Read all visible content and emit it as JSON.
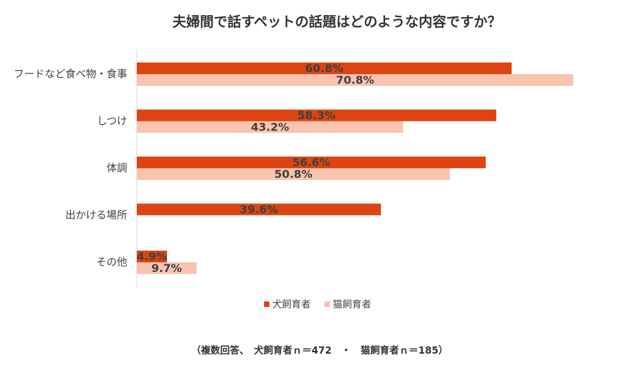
{
  "chart_data": {
    "type": "hbar",
    "title": "夫婦間で話すペットの話題はどのような内容ですか？",
    "categories": [
      "フードなど食べ物・食事",
      "しつけ",
      "体調",
      "出かける場所",
      "その他"
    ],
    "series": [
      {
        "name": "犬飼育者",
        "color": "#dc4511",
        "values": [
          60.8,
          58.3,
          56.6,
          39.6,
          4.9
        ],
        "value_labels": [
          "60.8%",
          "58.3%",
          "56.6%",
          "39.6%",
          "4.9%"
        ]
      },
      {
        "name": "猫飼育者",
        "color": "#f8c3af",
        "values": [
          70.8,
          43.2,
          50.8,
          null,
          9.7
        ],
        "value_labels": [
          "70.8%",
          "43.2%",
          "50.8%",
          null,
          "9.7%"
        ]
      }
    ],
    "legend": "bottom",
    "note": "（複数回答、　犬飼育者ｎ＝472　・　猫飼育者ｎ＝185）"
  }
}
